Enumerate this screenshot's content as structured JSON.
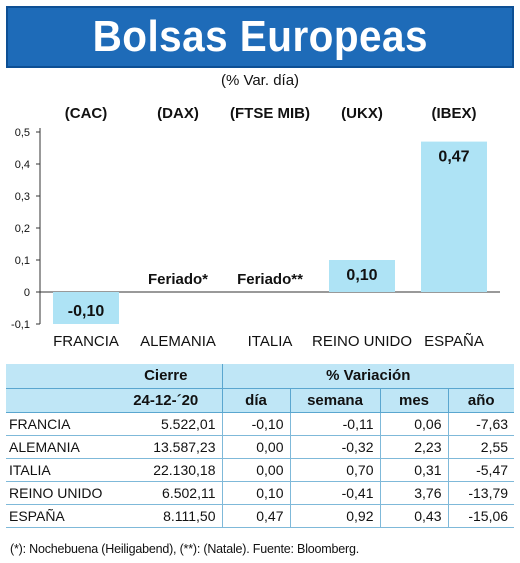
{
  "title": "Bolsas Europeas",
  "subtitle": "(% Var. día)",
  "colors": {
    "title_bg": "#1e6bb8",
    "bar": "#aee3f5",
    "header_bg": "#bfe6f6"
  },
  "chart_data": {
    "type": "bar",
    "indices": [
      "(CAC)",
      "(DAX)",
      "(FTSE MIB)",
      "(UKX)",
      "(IBEX)"
    ],
    "categories": [
      "FRANCIA",
      "ALEMANIA",
      "ITALIA",
      "REINO UNIDO",
      "ESPAÑA"
    ],
    "values": [
      -0.1,
      null,
      null,
      0.1,
      0.47
    ],
    "data_labels": [
      "-0,10",
      "Feriado*",
      "Feriado**",
      "0,10",
      "0,47"
    ],
    "yticks": [
      "0,5",
      "0,4",
      "0,3",
      "0,2",
      "0,1",
      "0",
      "-0,1"
    ],
    "ylim": [
      -0.1,
      0.5
    ],
    "xlabel": "",
    "ylabel": ""
  },
  "table": {
    "group_headers": [
      "Cierre",
      "% Variación"
    ],
    "columns": [
      "24-12-´20",
      "día",
      "semana",
      "mes",
      "año"
    ],
    "rows": [
      [
        "FRANCIA",
        "5.522,01",
        "-0,10",
        "-0,11",
        "0,06",
        "-7,63"
      ],
      [
        "ALEMANIA",
        "13.587,23",
        "0,00",
        "-0,32",
        "2,23",
        "2,55"
      ],
      [
        "ITALIA",
        "22.130,18",
        "0,00",
        "0,70",
        "0,31",
        "-5,47"
      ],
      [
        "REINO UNIDO",
        "6.502,11",
        "0,10",
        "-0,41",
        "3,76",
        "-13,79"
      ],
      [
        "ESPAÑA",
        "8.111,50",
        "0,47",
        "0,92",
        "0,43",
        "-15,06"
      ]
    ]
  },
  "footnote": "(*): Nochebuena (Heiligabend), (**): (Natale). Fuente: Bloomberg."
}
